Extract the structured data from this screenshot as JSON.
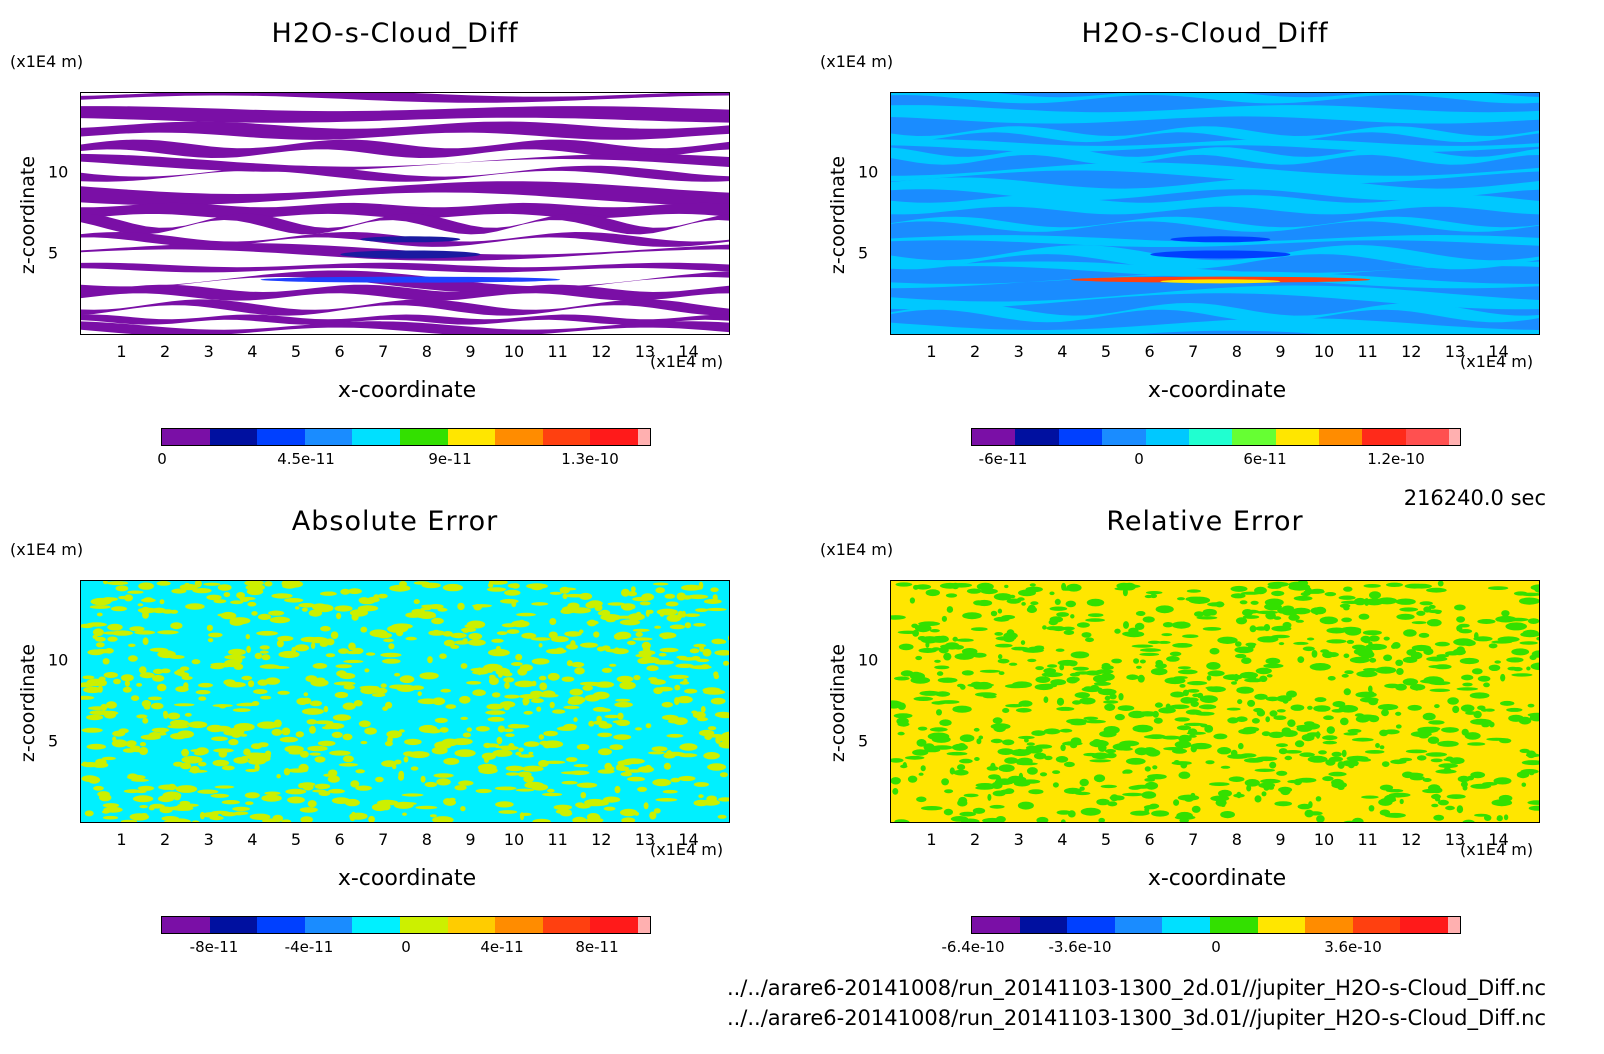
{
  "panels": [
    {
      "title": "H2O-s-Cloud_Diff",
      "x_unit": "(x1E4 m)",
      "y_unit": "(x1E4 m)",
      "xlabel": "x-coordinate",
      "ylabel": "z-coordinate",
      "x_ticks": [
        "1",
        "2",
        "3",
        "4",
        "5",
        "6",
        "7",
        "8",
        "9",
        "10",
        "11",
        "12",
        "13",
        "14"
      ],
      "y_ticks": [
        "5",
        "10"
      ],
      "colorbar_ticks": [
        "0",
        "4.5e-11",
        "9e-11",
        "1.3e-10"
      ],
      "colorbar_colors": [
        "#7a0fa6",
        "#0010a0",
        "#0040ff",
        "#1a8cff",
        "#00e0ff",
        "#33e000",
        "#ffe600",
        "#ff8c00",
        "#ff4010",
        "#ff1a1a",
        "#ffb0b0"
      ],
      "field_style": "banded"
    },
    {
      "title": "H2O-s-Cloud_Diff",
      "x_unit": "(x1E4 m)",
      "y_unit": "(x1E4 m)",
      "xlabel": "x-coordinate",
      "ylabel": "z-coordinate",
      "x_ticks": [
        "1",
        "2",
        "3",
        "4",
        "5",
        "6",
        "7",
        "8",
        "9",
        "10",
        "11",
        "12",
        "13",
        "14"
      ],
      "y_ticks": [
        "5",
        "10"
      ],
      "colorbar_ticks": [
        "-6e-11",
        "0",
        "6e-11",
        "1.2e-10"
      ],
      "colorbar_colors": [
        "#7a0fa6",
        "#0010a0",
        "#0040ff",
        "#1a8cff",
        "#00c8ff",
        "#20ffd0",
        "#66ff33",
        "#ffe600",
        "#ff8c00",
        "#ff2a1a",
        "#ff5050",
        "#ffb0b0"
      ],
      "field_style": "blue-banded"
    },
    {
      "title": "Absolute Error",
      "x_unit": "(x1E4 m)",
      "y_unit": "(x1E4 m)",
      "xlabel": "x-coordinate",
      "ylabel": "z-coordinate",
      "x_ticks": [
        "1",
        "2",
        "3",
        "4",
        "5",
        "6",
        "7",
        "8",
        "9",
        "10",
        "11",
        "12",
        "13",
        "14"
      ],
      "y_ticks": [
        "5",
        "10"
      ],
      "colorbar_ticks": [
        "-8e-11",
        "-4e-11",
        "0",
        "4e-11",
        "8e-11"
      ],
      "colorbar_colors": [
        "#7a0fa6",
        "#0010a0",
        "#0040ff",
        "#1a8cff",
        "#00f0ff",
        "#ccf000",
        "#ffcc00",
        "#ff8c00",
        "#ff4010",
        "#ff1a1a",
        "#ffb0b0"
      ],
      "field_style": "noise-cyan"
    },
    {
      "title": "Relative Error",
      "x_unit": "(x1E4 m)",
      "y_unit": "(x1E4 m)",
      "xlabel": "x-coordinate",
      "ylabel": "z-coordinate",
      "x_ticks": [
        "1",
        "2",
        "3",
        "4",
        "5",
        "6",
        "7",
        "8",
        "9",
        "10",
        "11",
        "12",
        "13",
        "14"
      ],
      "y_ticks": [
        "5",
        "10"
      ],
      "colorbar_ticks": [
        "-6.4e-10",
        "-3.6e-10",
        "0",
        "3.6e-10"
      ],
      "colorbar_colors": [
        "#7a0fa6",
        "#0010a0",
        "#0040ff",
        "#1a8cff",
        "#00e0ff",
        "#33e000",
        "#ffe600",
        "#ff8c00",
        "#ff4010",
        "#ff1a1a",
        "#ffb0b0"
      ],
      "field_style": "noise-green"
    }
  ],
  "time_label": "216240.0 sec",
  "file_paths": [
    "../../arare6-20141008/run_20141103-1300_2d.01//jupiter_H2O-s-Cloud_Diff.nc",
    "../../arare6-20141008/run_20141103-1300_3d.01//jupiter_H2O-s-Cloud_Diff.nc"
  ],
  "chart_data": [
    {
      "type": "heatmap",
      "title": "H2O-s-Cloud_Diff",
      "xlabel": "x-coordinate",
      "ylabel": "z-coordinate",
      "x_unit": "(x1E4 m)",
      "y_unit": "(x1E4 m)",
      "xlim": [
        0.05,
        14.95
      ],
      "ylim": [
        0.05,
        14.5
      ],
      "colorbar_ticks": [
        0,
        4.5e-11,
        9e-11,
        1.3e-10
      ]
    },
    {
      "type": "heatmap",
      "title": "H2O-s-Cloud_Diff",
      "xlabel": "x-coordinate",
      "ylabel": "z-coordinate",
      "x_unit": "(x1E4 m)",
      "y_unit": "(x1E4 m)",
      "xlim": [
        0.05,
        14.95
      ],
      "ylim": [
        0.05,
        14.5
      ],
      "colorbar_ticks": [
        -6e-11,
        0,
        6e-11,
        1.2e-10
      ]
    },
    {
      "type": "heatmap",
      "title": "Absolute Error",
      "xlabel": "x-coordinate",
      "ylabel": "z-coordinate",
      "x_unit": "(x1E4 m)",
      "y_unit": "(x1E4 m)",
      "xlim": [
        0.05,
        14.95
      ],
      "ylim": [
        0.05,
        14.5
      ],
      "colorbar_ticks": [
        -8e-11,
        -4e-11,
        0,
        4e-11,
        8e-11
      ]
    },
    {
      "type": "heatmap",
      "title": "Relative Error",
      "xlabel": "x-coordinate",
      "ylabel": "z-coordinate",
      "x_unit": "(x1E4 m)",
      "y_unit": "(x1E4 m)",
      "xlim": [
        0.05,
        14.95
      ],
      "ylim": [
        0.05,
        14.5
      ],
      "colorbar_ticks": [
        -6.4e-10,
        -3.6e-10,
        0,
        3.6e-10
      ]
    }
  ]
}
